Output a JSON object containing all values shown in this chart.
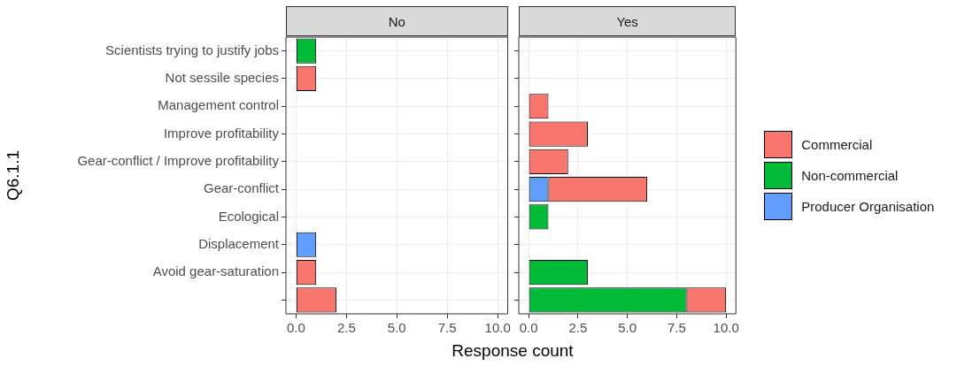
{
  "chart_data": [
    {
      "type": "bar",
      "title": "No",
      "xlabel": "Response count",
      "ylabel": "Q6.1.1",
      "orientation": "horizontal",
      "stacked": true,
      "grid": true,
      "legend": false,
      "categories": [
        "Scientists trying to justify jobs",
        "Not sessile species",
        "Management control",
        "Improve profitability",
        "Gear-conflict / Improve profitability",
        "Gear-conflict",
        "Ecological",
        "Displacement",
        "Avoid gear-saturation",
        null
      ],
      "series": [
        {
          "color": "#619cff",
          "values": [
            null,
            null,
            null,
            null,
            null,
            null,
            null,
            1,
            null,
            null
          ]
        },
        {
          "color": "#00ba38",
          "values": [
            1,
            null,
            null,
            null,
            null,
            null,
            null,
            null,
            null,
            null
          ]
        },
        {
          "color": "#f8766d",
          "values": [
            null,
            1,
            null,
            null,
            null,
            null,
            null,
            null,
            1,
            2
          ]
        }
      ],
      "xlim": [
        -0.5,
        10.5
      ],
      "xticks": [
        {
          "value": 0,
          "label": "0.0"
        },
        {
          "value": 2.5,
          "label": "2.5"
        },
        {
          "value": 5,
          "label": "5.0"
        },
        {
          "value": 7.5,
          "label": "7.5"
        },
        {
          "value": 10,
          "label": "10.0"
        }
      ]
    },
    {
      "type": "bar",
      "title": "Yes",
      "orientation": "horizontal",
      "stacked": true,
      "grid": true,
      "legend": "right",
      "tick_labels": "x",
      "categories": [
        null,
        null,
        null,
        null,
        null,
        null,
        null,
        null,
        null,
        null
      ],
      "series": [
        {
          "name": "Producer Organisation",
          "color": "#619cff",
          "values": [
            null,
            null,
            null,
            null,
            null,
            1,
            null,
            null,
            null,
            null
          ]
        },
        {
          "name": "Non-commercial",
          "color": "#00ba38",
          "values": [
            null,
            null,
            null,
            null,
            null,
            null,
            1,
            null,
            3,
            8
          ]
        },
        {
          "name": "Commercial",
          "color": "#f8766d",
          "values": [
            null,
            null,
            1,
            3,
            2,
            5,
            null,
            null,
            null,
            2
          ]
        }
      ],
      "xlim": [
        -0.5,
        10.5
      ],
      "xticks": [
        {
          "value": 0,
          "label": "0.0"
        },
        {
          "value": 2.5,
          "label": "2.5"
        },
        {
          "value": 5,
          "label": "5.0"
        },
        {
          "value": 7.5,
          "label": "7.5"
        },
        {
          "value": 10,
          "label": "10.0"
        }
      ]
    }
  ]
}
